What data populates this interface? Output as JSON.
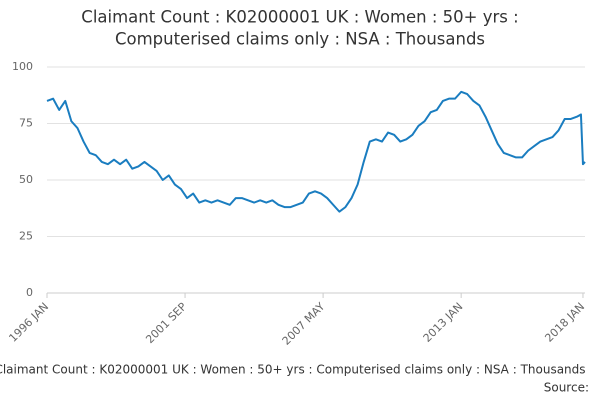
{
  "chart_data": {
    "type": "line",
    "title": [
      "Claimant Count : K02000001 UK : Women : 50+ yrs :",
      "Computerised claims only : NSA : Thousands"
    ],
    "footer": "Claimant Count : K02000001 UK : Women : 50+ yrs : Computerised claims only : NSA : Thousands",
    "source": "Source:",
    "x": [
      "1996 JAN",
      "1996 APR",
      "1996 JUL",
      "1996 OCT",
      "1997 JAN",
      "1997 APR",
      "1997 JUL",
      "1997 OCT",
      "1998 JAN",
      "1998 APR",
      "1998 JUL",
      "1998 OCT",
      "1999 JAN",
      "1999 APR",
      "1999 JUL",
      "1999 OCT",
      "2000 JAN",
      "2000 APR",
      "2000 JUL",
      "2000 OCT",
      "2001 JAN",
      "2001 APR",
      "2001 JUL",
      "2001 OCT",
      "2002 JAN",
      "2002 APR",
      "2002 JUL",
      "2002 OCT",
      "2003 JAN",
      "2003 APR",
      "2003 JUL",
      "2003 OCT",
      "2004 JAN",
      "2004 APR",
      "2004 JUL",
      "2004 OCT",
      "2005 JAN",
      "2005 APR",
      "2005 JUL",
      "2005 OCT",
      "2006 JAN",
      "2006 APR",
      "2006 JUL",
      "2006 OCT",
      "2007 JAN",
      "2007 APR",
      "2007 JUL",
      "2007 OCT",
      "2008 JAN",
      "2008 APR",
      "2008 JUL",
      "2008 OCT",
      "2009 JAN",
      "2009 APR",
      "2009 JUL",
      "2009 OCT",
      "2010 JAN",
      "2010 APR",
      "2010 JUL",
      "2010 OCT",
      "2011 JAN",
      "2011 APR",
      "2011 JUL",
      "2011 OCT",
      "2012 JAN",
      "2012 APR",
      "2012 JUL",
      "2012 OCT",
      "2013 JAN",
      "2013 APR",
      "2013 JUL",
      "2013 OCT",
      "2014 JAN",
      "2014 APR",
      "2014 JUL",
      "2014 OCT",
      "2015 JAN",
      "2015 APR",
      "2015 JUL",
      "2015 OCT",
      "2016 JAN",
      "2016 APR",
      "2016 JUL",
      "2016 OCT",
      "2017 JAN",
      "2017 APR",
      "2017 JUL",
      "2017 OCT",
      "2017 DEC",
      "2018 JAN",
      "2018 FEB"
    ],
    "series": [
      {
        "name": "Claimant Count",
        "color": "#1a7dc0",
        "values": [
          85,
          86,
          81,
          85,
          76,
          73,
          67,
          62,
          61,
          58,
          57,
          59,
          57,
          59,
          55,
          56,
          58,
          56,
          54,
          50,
          52,
          48,
          46,
          42,
          44,
          40,
          41,
          40,
          41,
          40,
          39,
          42,
          42,
          41,
          40,
          41,
          40,
          41,
          39,
          38,
          38,
          39,
          40,
          44,
          45,
          44,
          42,
          39,
          36,
          38,
          42,
          48,
          58,
          67,
          68,
          67,
          71,
          70,
          67,
          68,
          70,
          74,
          76,
          80,
          81,
          85,
          86,
          86,
          89,
          88,
          85,
          83,
          78,
          72,
          66,
          62,
          61,
          60,
          60,
          63,
          65,
          67,
          68,
          69,
          72,
          77,
          77,
          78,
          79,
          57,
          58
        ]
      }
    ],
    "xlim": [
      "1996 JAN",
      "2018 FEB"
    ],
    "xticks": [
      "1996 JAN",
      "2001 SEP",
      "2007 MAY",
      "2013 JAN",
      "2018 JAN"
    ],
    "ylim": [
      0,
      100
    ],
    "yticks": [
      0,
      25,
      50,
      75,
      100
    ],
    "grid": true
  }
}
